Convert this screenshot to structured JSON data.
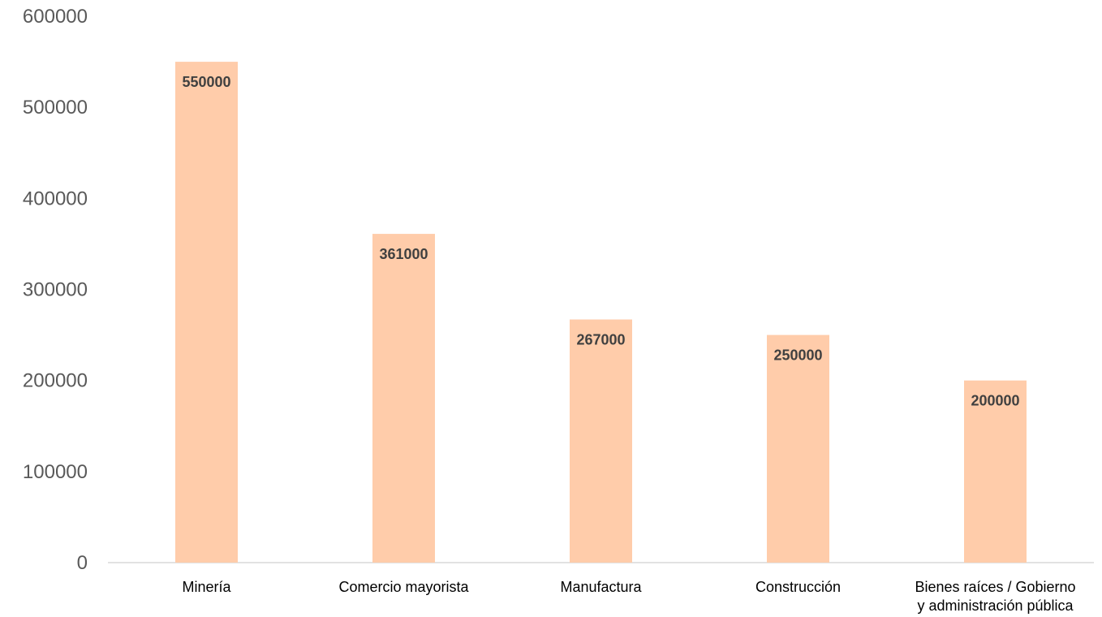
{
  "chart_data": {
    "type": "bar",
    "categories": [
      [
        "Minería"
      ],
      [
        "Comercio mayorista"
      ],
      [
        "Manufactura"
      ],
      [
        "Construcción"
      ],
      [
        "Bienes raíces / Gobierno",
        "y administración pública"
      ]
    ],
    "values": [
      550000,
      361000,
      267000,
      250000,
      200000
    ],
    "data_labels": [
      "550000",
      "361000",
      "267000",
      "250000",
      "200000"
    ],
    "y_ticks": [
      0,
      100000,
      200000,
      300000,
      400000,
      500000,
      600000
    ],
    "ylim": [
      0,
      600000
    ],
    "grid": false,
    "legend": "none",
    "colors": {
      "bar": "#FFCCAA",
      "axis": "#D9D9D9",
      "tick_text": "#595959",
      "category_text": "#000000",
      "data_label": "#404040"
    }
  }
}
